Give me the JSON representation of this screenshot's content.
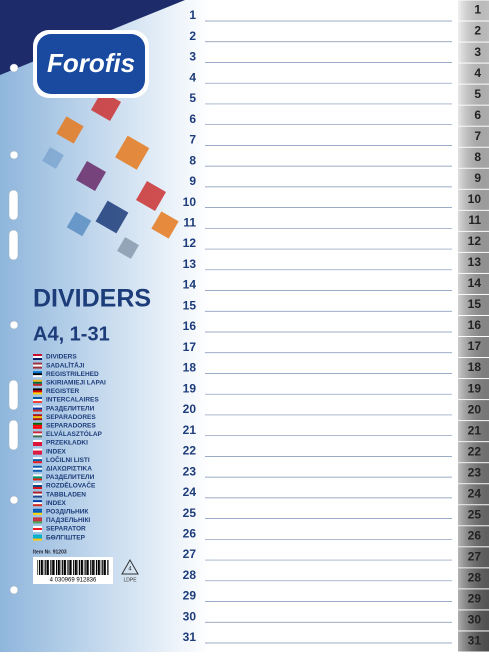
{
  "brand": "Forofis",
  "title": "DIVIDERS",
  "subtitle": "A4, 1-31",
  "languages": [
    "DIVIDERS",
    "SADALĪTĀJI",
    "REGISTRILEHED",
    "SKIRIAMIEJI LAPAI",
    "REGISTER",
    "INTERCALAIRES",
    "РАЗДЕЛИТЕЛИ",
    "SEPARADORES",
    "SEPARADORES",
    "ELVÁLASZTÓLAP",
    "PRZEKŁADKI",
    "INDEX",
    "LOČILNI LISTI",
    "ΔΙΑΧΩΡΙΣΤΙΚΑ",
    "РАЗДЕЛИТЕЛИ",
    "ROZDĚLOVAČE",
    "TABBLADEN",
    "INDEX",
    "РОЗДІЛЬНИК",
    "ПАДЗЕЛЬНІКІ",
    "SEPARATOR",
    "БӨЛГІШТЕР"
  ],
  "item_number": "Item Nr. 91203",
  "barcode": "4 030969 912836",
  "recycle": {
    "code": "4",
    "material": "LDPE"
  },
  "numbers": [
    1,
    2,
    3,
    4,
    5,
    6,
    7,
    8,
    9,
    10,
    11,
    12,
    13,
    14,
    15,
    16,
    17,
    18,
    19,
    20,
    21,
    22,
    23,
    24,
    25,
    26,
    27,
    28,
    29,
    30,
    31
  ],
  "tabs": [
    1,
    2,
    3,
    4,
    5,
    6,
    7,
    8,
    9,
    10,
    11,
    12,
    13,
    14,
    15,
    16,
    17,
    18,
    19,
    20,
    21,
    22,
    23,
    24,
    25,
    26,
    27,
    28,
    29,
    30,
    31
  ]
}
